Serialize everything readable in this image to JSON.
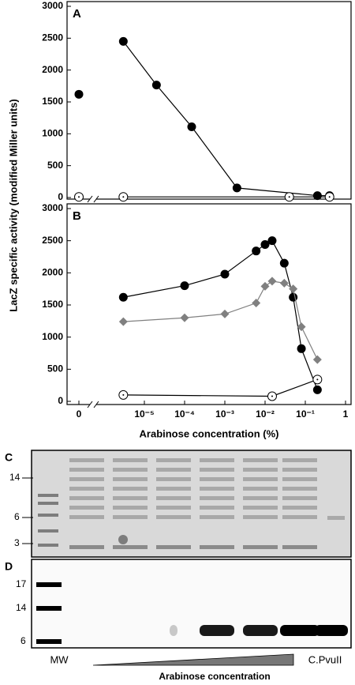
{
  "chart_data": [
    {
      "type": "line",
      "title": "A",
      "ylabel": "LacZ specific activity (modified Miller units)",
      "xscale": "log",
      "xlim": [
        1e-06,
        1
      ],
      "ylim": [
        0,
        3000
      ],
      "yticks": [
        0,
        500,
        1000,
        1500,
        2000,
        2500,
        3000
      ],
      "series": [
        {
          "color": "#000000",
          "marker": "circle",
          "line": true,
          "x": [
            3e-06,
            2e-05,
            0.00015,
            0.002,
            0.2,
            0.4
          ],
          "values": [
            2450,
            1765,
            1110,
            150,
            30,
            30
          ]
        },
        {
          "color": "#000000",
          "marker": "circle",
          "line": false,
          "x": [
            0
          ],
          "values": [
            1620
          ]
        },
        {
          "color": "#000000",
          "marker": "open",
          "line": true,
          "x": [
            3e-06,
            0.04,
            0.4
          ],
          "values": [
            10,
            10,
            10
          ]
        },
        {
          "color": "#000000",
          "marker": "open",
          "line": false,
          "x": [
            0
          ],
          "values": [
            10
          ]
        }
      ]
    },
    {
      "type": "line",
      "title": "B",
      "xlabel": "Arabinose concentration (%)",
      "xscale": "log",
      "xlim": [
        1e-06,
        1
      ],
      "ylim": [
        0,
        3000
      ],
      "yticks": [
        0,
        500,
        1000,
        1500,
        2000,
        2500,
        3000
      ],
      "xticks": [
        0,
        {
          "value": 1e-05,
          "label": "10⁻⁵"
        },
        {
          "value": 0.0001,
          "label": "10⁻⁴"
        },
        {
          "value": 0.001,
          "label": "10⁻³"
        },
        {
          "value": 0.01,
          "label": "10⁻²"
        },
        {
          "value": 0.1,
          "label": "10⁻¹"
        },
        1
      ],
      "series": [
        {
          "color": "#000000",
          "marker": "circle",
          "line": true,
          "x": [
            3e-06,
            0.0001,
            0.001,
            0.006,
            0.01,
            0.015,
            0.03,
            0.05,
            0.08,
            0.2
          ],
          "values": [
            1620,
            1800,
            1980,
            2340,
            2440,
            2500,
            2150,
            1620,
            820,
            180
          ]
        },
        {
          "color": "#808080",
          "marker": "diamond",
          "line": true,
          "x": [
            3e-06,
            0.0001,
            0.001,
            0.006,
            0.01,
            0.015,
            0.03,
            0.05,
            0.08,
            0.2
          ],
          "values": [
            1240,
            1300,
            1360,
            1530,
            1790,
            1870,
            1840,
            1750,
            1160,
            650
          ]
        },
        {
          "color": "#000000",
          "marker": "open",
          "line": true,
          "x": [
            3e-06,
            0.015,
            0.2
          ],
          "values": [
            100,
            80,
            340
          ]
        }
      ]
    }
  ],
  "gels": {
    "c": {
      "label": "C",
      "markers": [
        "14",
        "6",
        "3"
      ]
    },
    "d": {
      "label": "D",
      "markers": [
        "17",
        "14",
        "6"
      ]
    },
    "lane_left": "MW",
    "lane_right": "C.PvuII",
    "gradient_label": "Arabinose concentration"
  }
}
